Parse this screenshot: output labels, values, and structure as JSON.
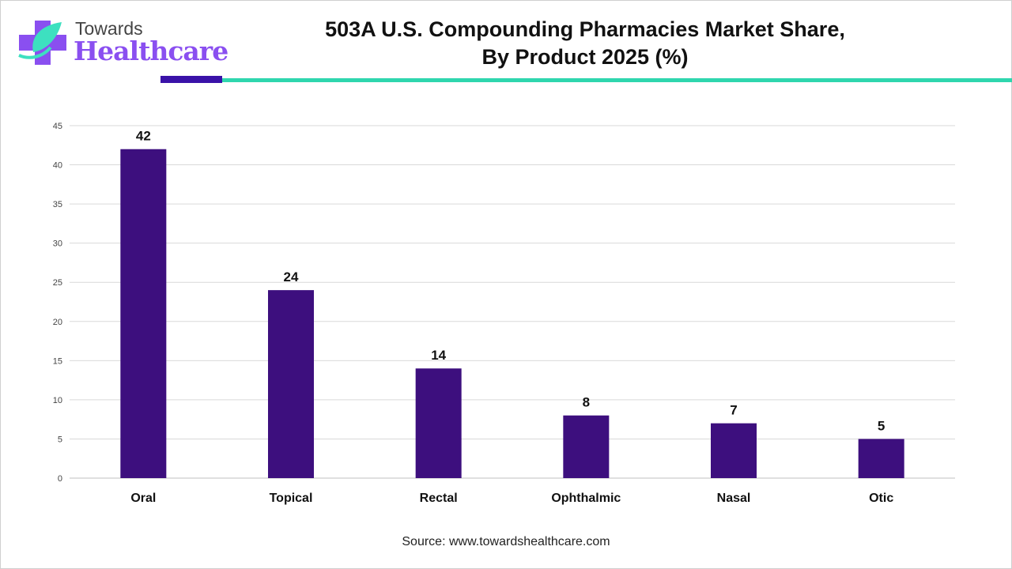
{
  "logo": {
    "line1": "Towards",
    "line2": "Healthcare"
  },
  "header": {
    "title_line1": "503A U.S. Compounding Pharmacies Market Share,",
    "title_line2": "By Product 2025 (%)"
  },
  "colors": {
    "bar": "#3d0f7e",
    "accent_dark": "#3a12a8",
    "accent_teal": "#2fd6ae",
    "grid": "#d9d9d9"
  },
  "chart_data": {
    "type": "bar",
    "title": "503A U.S. Compounding Pharmacies Market Share, By Product 2025 (%)",
    "categories": [
      "Oral",
      "Topical",
      "Rectal",
      "Ophthalmic",
      "Nasal",
      "Otic"
    ],
    "values": [
      42,
      24,
      14,
      8,
      7,
      5
    ],
    "xlabel": "",
    "ylabel": "",
    "ylim": [
      0,
      45
    ],
    "yticks": [
      0,
      5,
      10,
      15,
      20,
      25,
      30,
      35,
      40,
      45
    ],
    "grid": true,
    "legend": "none"
  },
  "source": "Source: www.towardshealthcare.com"
}
